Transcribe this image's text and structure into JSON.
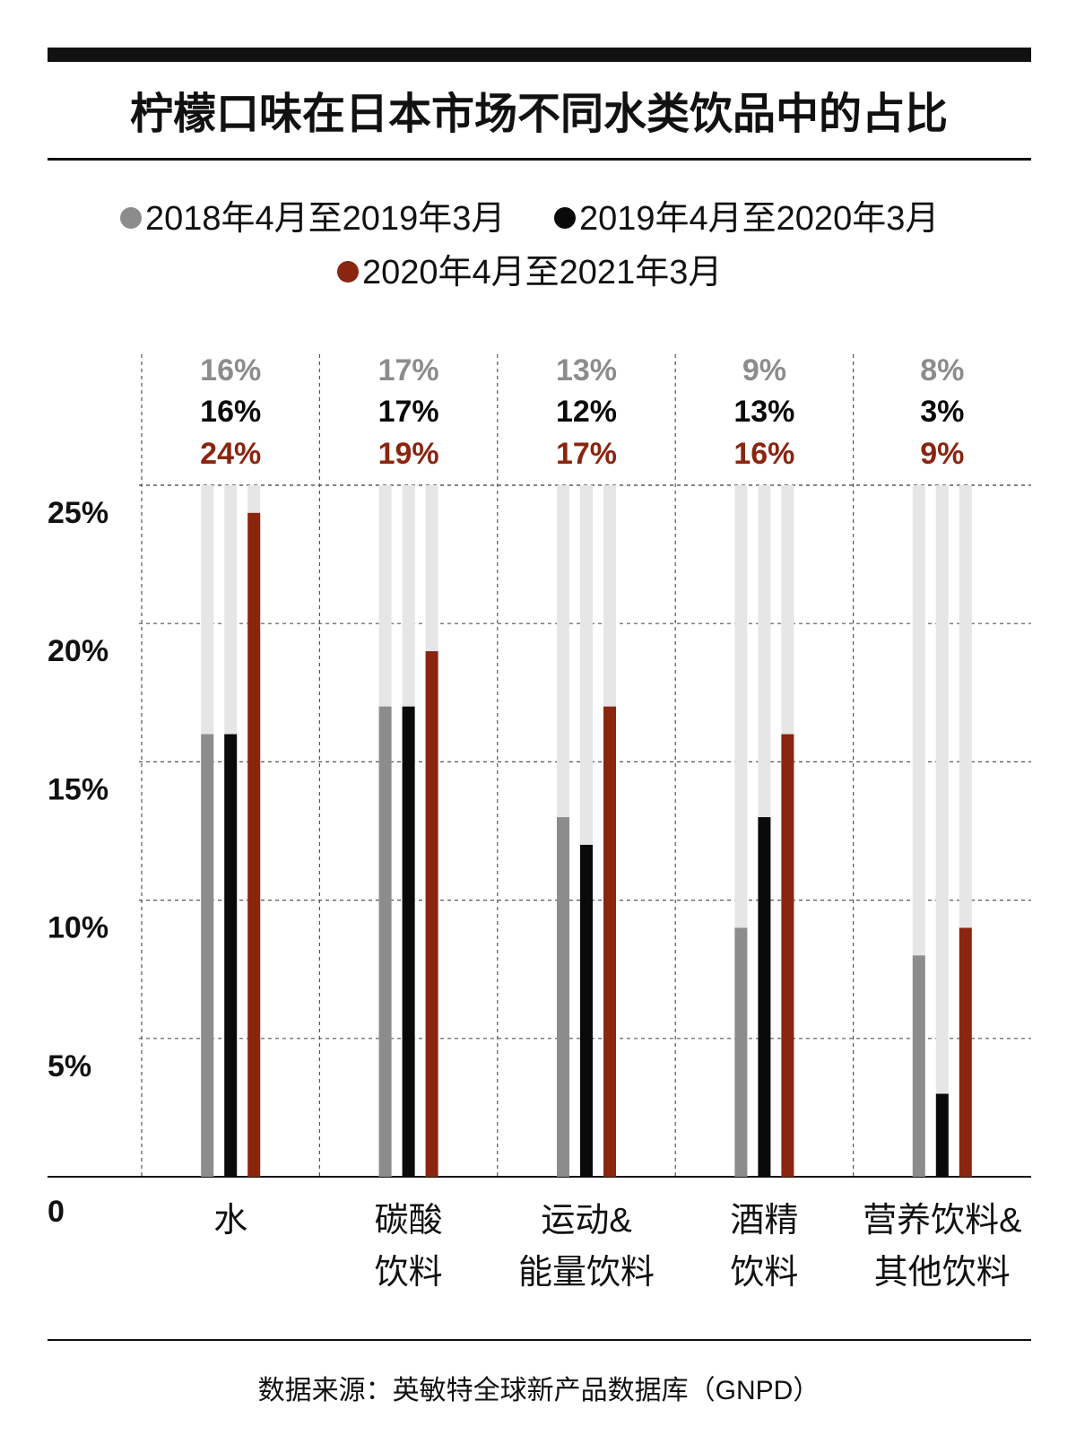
{
  "colors": {
    "series_2018": "#8c8c8c",
    "series_2019": "#0a0a0a",
    "series_2020": "#8a2510",
    "track": "#e6e6e6",
    "rule": "#111111",
    "grid": "#555555"
  },
  "chart_data": {
    "type": "bar",
    "title": "柠檬口味在日本市场不同水类饮品中的占比",
    "source": "数据来源：英敏特全球新产品数据库（GNPD）",
    "categories": [
      [
        "水"
      ],
      [
        "碳酸",
        "饮料"
      ],
      [
        "运动&",
        "能量饮料"
      ],
      [
        "酒精",
        "饮料"
      ],
      [
        "营养饮料&",
        "其他饮料"
      ]
    ],
    "series": [
      {
        "name": "2018年4月至2019年3月",
        "color": "#8c8c8c",
        "values": [
          16,
          17,
          13,
          9,
          8
        ]
      },
      {
        "name": "2019年4月至2020年3月",
        "color": "#0a0a0a",
        "values": [
          16,
          17,
          12,
          13,
          3
        ]
      },
      {
        "name": "2020年4月至2021年3月",
        "color": "#8a2510",
        "values": [
          24,
          19,
          17,
          16,
          9
        ]
      }
    ],
    "data_labels": [
      [
        "16%",
        "17%",
        "13%",
        "9%",
        "8%"
      ],
      [
        "16%",
        "17%",
        "12%",
        "13%",
        "3%"
      ],
      [
        "24%",
        "19%",
        "17%",
        "16%",
        "9%"
      ]
    ],
    "y_ticks": [
      {
        "value": 0,
        "label": "0"
      },
      {
        "value": 5,
        "label": "5%"
      },
      {
        "value": 10,
        "label": "10%"
      },
      {
        "value": 15,
        "label": "15%"
      },
      {
        "value": 20,
        "label": "20%"
      },
      {
        "value": 25,
        "label": "25%"
      }
    ],
    "ylim": [
      0,
      25
    ],
    "grid": true,
    "legend_position": "top"
  }
}
